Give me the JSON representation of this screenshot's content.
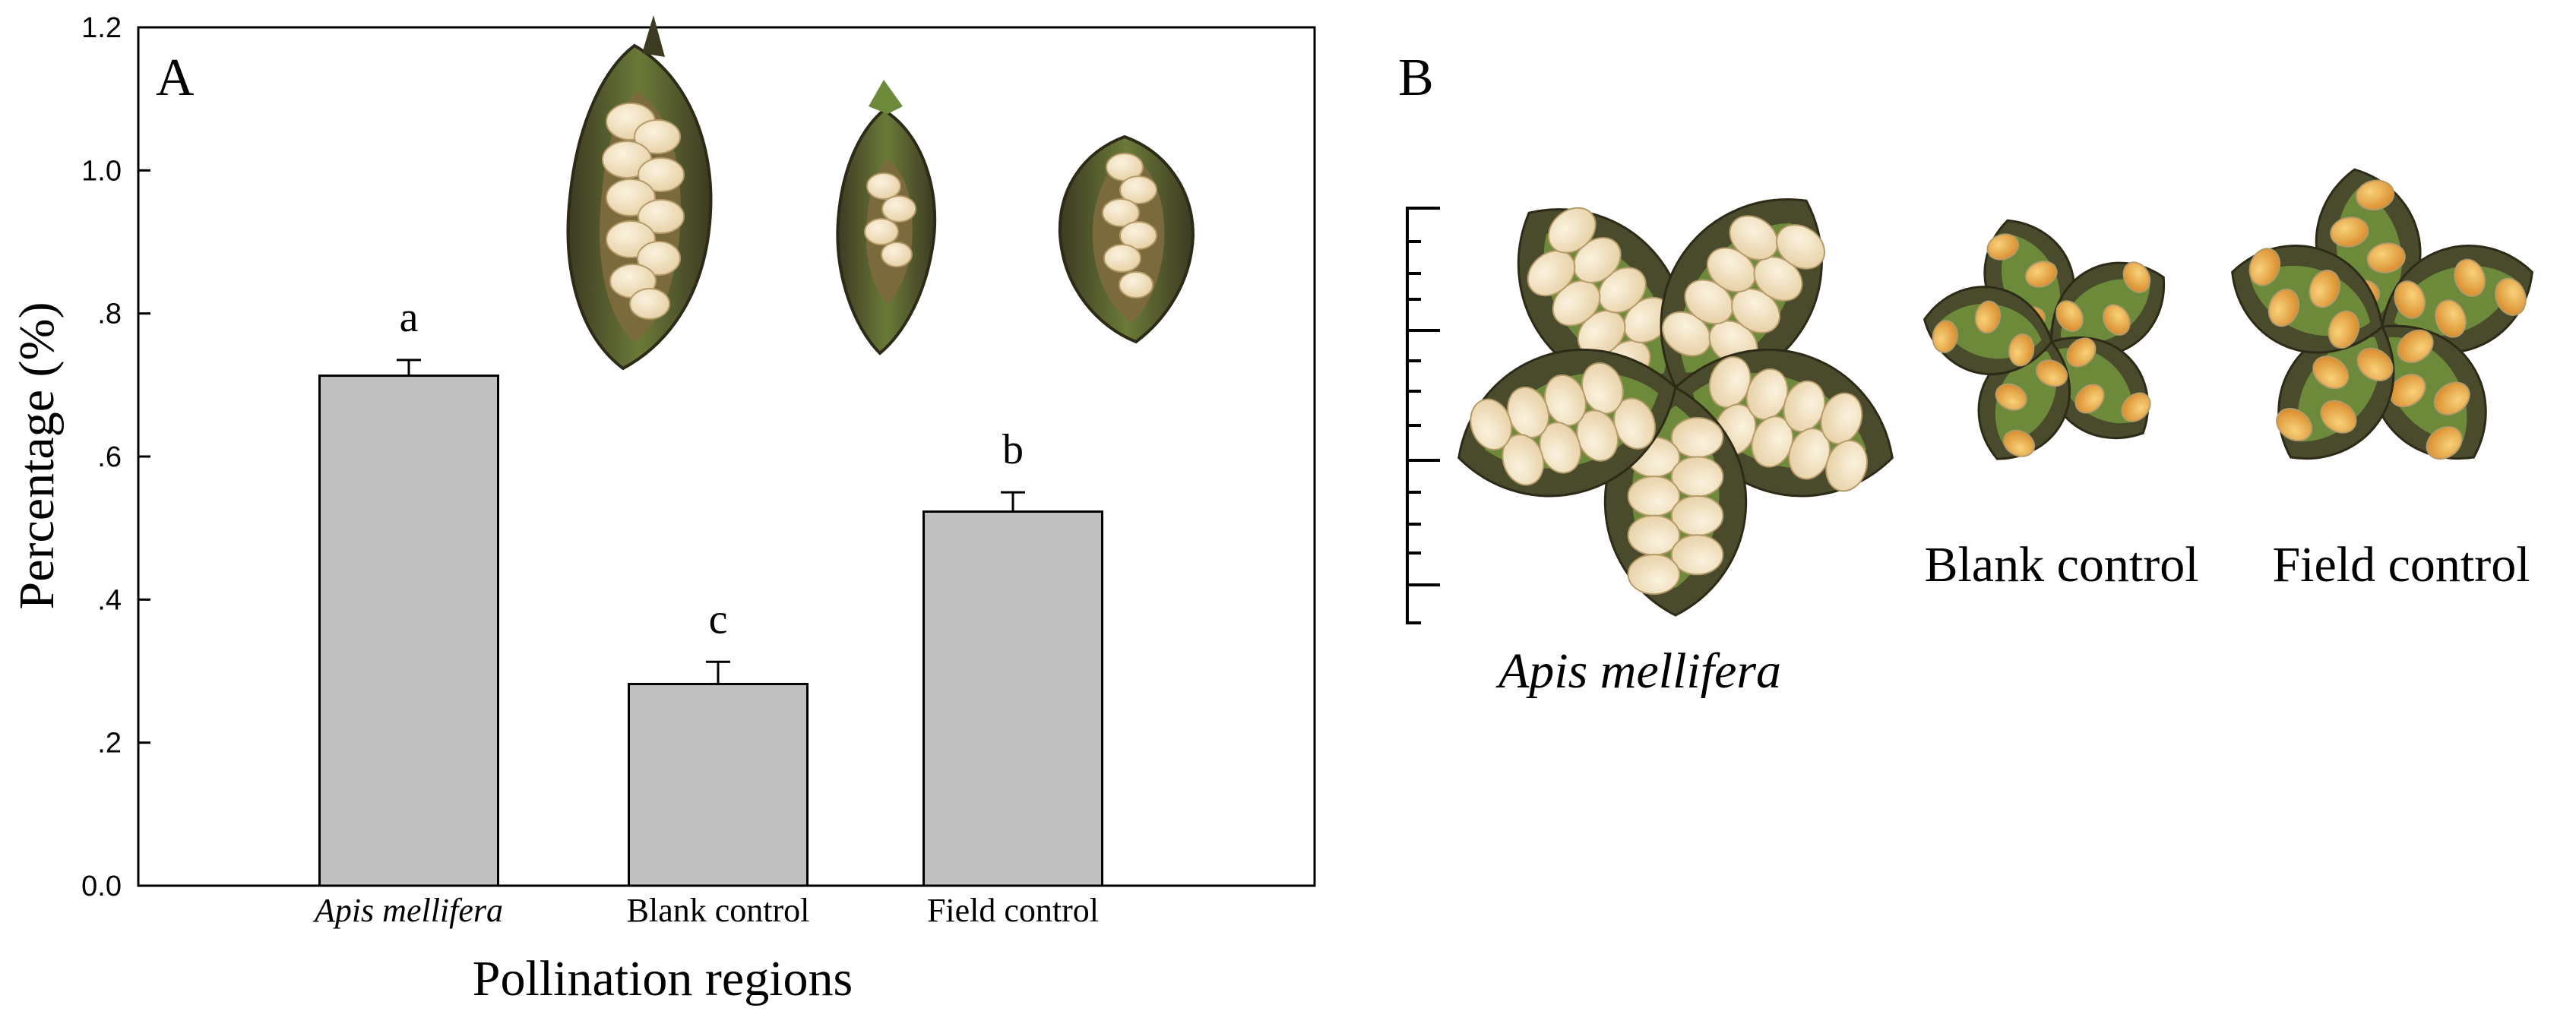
{
  "panel_a": {
    "label": "A",
    "chart_data": {
      "type": "bar",
      "categories": [
        "Apis mellifera",
        "Blank control",
        "Field control"
      ],
      "category_italic": [
        true,
        false,
        false
      ],
      "values": [
        0.713,
        0.282,
        0.523
      ],
      "errors": [
        0.022,
        0.031,
        0.027
      ],
      "significance": [
        "a",
        "c",
        "b"
      ],
      "xlabel": "Pollination regions",
      "ylabel": "Percentage (%)",
      "ylim": [
        0,
        1.2
      ],
      "yticks": [
        0,
        0.2,
        0.4,
        0.6,
        0.8,
        1.0,
        1.2
      ],
      "ytick_labels": [
        "0.0",
        ".2",
        ".4",
        ".6",
        ".8",
        "1.0",
        "1.2"
      ],
      "bar_color": "#c0c0c0",
      "grid": false,
      "legend": "none"
    }
  },
  "panel_b": {
    "label": "B",
    "captions": [
      "Apis mellifera",
      "Blank control",
      "Field control"
    ]
  },
  "colors": {
    "capsule_outer": "#4a4a2c",
    "capsule_green": "#6c8a3a",
    "seed_cream": "#f0dfbc",
    "seed_orange": "#e8a540"
  }
}
